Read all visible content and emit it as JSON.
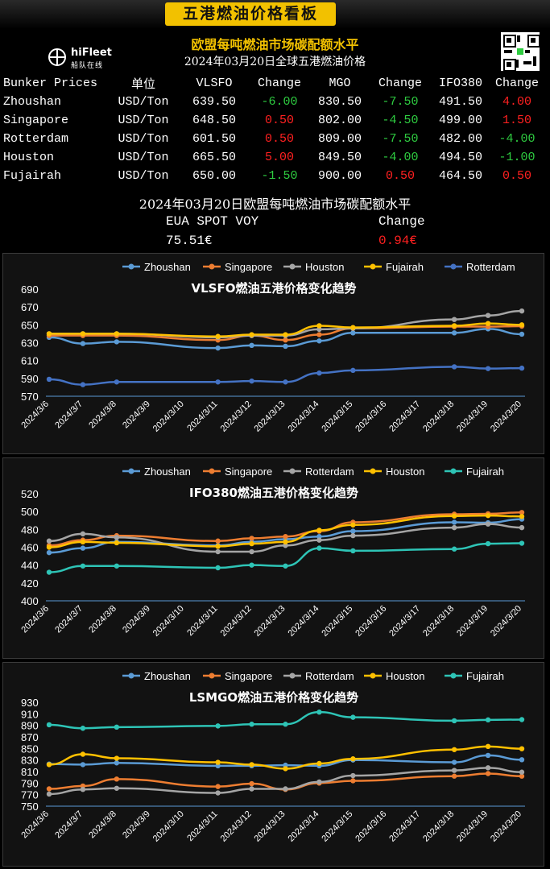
{
  "header": {
    "title": "五港燃油价格看板",
    "subtitle": "欧盟每吨燃油市场碳配额水平",
    "date_line": "2024年03月20日全球五港燃油价格",
    "logo_text": "hiFleet",
    "logo_sub": "船队在线"
  },
  "price_table": {
    "headers": [
      "Bunker Prices",
      "单位",
      "VLSFO",
      "Change",
      "MGO",
      "Change",
      "IFO380",
      "Change"
    ],
    "rows": [
      {
        "port": "Zhoushan",
        "unit": "USD/Ton",
        "vlsfo": "639.50",
        "vlsfo_chg": "-6.00",
        "mgo": "830.50",
        "mgo_chg": "-7.50",
        "ifo": "491.50",
        "ifo_chg": "4.00"
      },
      {
        "port": "Singapore",
        "unit": "USD/Ton",
        "vlsfo": "648.50",
        "vlsfo_chg": "0.50",
        "mgo": "802.00",
        "mgo_chg": "-4.50",
        "ifo": "499.00",
        "ifo_chg": "1.50"
      },
      {
        "port": "Rotterdam",
        "unit": "USD/Ton",
        "vlsfo": "601.50",
        "vlsfo_chg": "0.50",
        "mgo": "809.00",
        "mgo_chg": "-7.50",
        "ifo": "482.00",
        "ifo_chg": "-4.00"
      },
      {
        "port": "Houston",
        "unit": "USD/Ton",
        "vlsfo": "665.50",
        "vlsfo_chg": "5.00",
        "mgo": "849.50",
        "mgo_chg": "-4.00",
        "ifo": "494.50",
        "ifo_chg": "-1.00"
      },
      {
        "port": "Fujairah",
        "unit": "USD/Ton",
        "vlsfo": "650.00",
        "vlsfo_chg": "-1.50",
        "mgo": "900.00",
        "mgo_chg": "0.50",
        "ifo": "464.50",
        "ifo_chg": "0.50"
      }
    ]
  },
  "eua": {
    "title": "2024年03月20日欧盟每吨燃油市场碳配额水平",
    "label": "EUA SPOT VOY",
    "change_label": "Change",
    "value": "75.51€",
    "change": "0.94€"
  },
  "colors": {
    "Zhoushan": "#5b9bd5",
    "Singapore": "#ed7d31",
    "Houston_vlsfo": "#a5a5a5",
    "Fujairah_vlsfo": "#ffc000",
    "Rotterdam_vlsfo": "#4472c4",
    "Rotterdam": "#a5a5a5",
    "Houston": "#ffc000",
    "Fujairah": "#2ec4b6",
    "accent": "#f2c100",
    "up": "#ff2020",
    "down": "#2ecc40"
  },
  "chart_data": [
    {
      "type": "line",
      "title": "VLSFO燃油五港价格变化趋势",
      "x": [
        "2024/3/6",
        "2024/3/7",
        "2024/3/8",
        "2024/3/9",
        "2024/3/10",
        "2024/3/11",
        "2024/3/12",
        "2024/3/13",
        "2024/3/14",
        "2024/3/15",
        "2024/3/16",
        "2024/3/17",
        "2024/3/18",
        "2024/3/19",
        "2024/3/20"
      ],
      "ylim": [
        570,
        690
      ],
      "yticks": [
        570,
        590,
        610,
        630,
        650,
        670,
        690
      ],
      "legend_position": "top",
      "series": [
        {
          "name": "Zhoushan",
          "color": "#5b9bd5",
          "points": [
            [
              0,
              636
            ],
            [
              1,
              629
            ],
            [
              2,
              631
            ],
            [
              5,
              624
            ],
            [
              6,
              627
            ],
            [
              7,
              626
            ],
            [
              8,
              632
            ],
            [
              9,
              641
            ],
            [
              12,
              641
            ],
            [
              13,
              645.5
            ],
            [
              14,
              639.5
            ]
          ]
        },
        {
          "name": "Singapore",
          "color": "#ed7d31",
          "points": [
            [
              0,
              638
            ],
            [
              1,
              638
            ],
            [
              2,
              638
            ],
            [
              5,
              633
            ],
            [
              6,
              638
            ],
            [
              7,
              633
            ],
            [
              8,
              639
            ],
            [
              9,
              646
            ],
            [
              12,
              648
            ],
            [
              13,
              648
            ],
            [
              14,
              648.5
            ]
          ]
        },
        {
          "name": "Houston",
          "color": "#a5a5a5",
          "points": [
            [
              0,
              640
            ],
            [
              1,
              640
            ],
            [
              2,
              640
            ],
            [
              5,
              636
            ],
            [
              6,
              638
            ],
            [
              7,
              638
            ],
            [
              8,
              645
            ],
            [
              9,
              646
            ],
            [
              12,
              656
            ],
            [
              13,
              660.5
            ],
            [
              14,
              665.5
            ]
          ]
        },
        {
          "name": "Fujairah",
          "color": "#ffc000",
          "points": [
            [
              0,
              640
            ],
            [
              1,
              640
            ],
            [
              2,
              640
            ],
            [
              5,
              637
            ],
            [
              6,
              639
            ],
            [
              7,
              639
            ],
            [
              8,
              649
            ],
            [
              9,
              647
            ],
            [
              12,
              649
            ],
            [
              13,
              651.5
            ],
            [
              14,
              650
            ]
          ]
        },
        {
          "name": "Rotterdam",
          "color": "#4472c4",
          "points": [
            [
              0,
              589
            ],
            [
              1,
              583
            ],
            [
              2,
              586
            ],
            [
              5,
              586
            ],
            [
              6,
              587
            ],
            [
              7,
              586
            ],
            [
              8,
              596
            ],
            [
              9,
              599
            ],
            [
              12,
              603
            ],
            [
              13,
              601
            ],
            [
              14,
              601.5
            ]
          ]
        }
      ]
    },
    {
      "type": "line",
      "title": "IFO380燃油五港价格变化趋势",
      "x": [
        "2024/3/6",
        "2024/3/7",
        "2024/3/8",
        "2024/3/9",
        "2024/3/10",
        "2024/3/11",
        "2024/3/12",
        "2024/3/13",
        "2024/3/14",
        "2024/3/15",
        "2024/3/16",
        "2024/3/17",
        "2024/3/18",
        "2024/3/19",
        "2024/3/20"
      ],
      "ylim": [
        400,
        520
      ],
      "yticks": [
        400,
        420,
        440,
        460,
        480,
        500,
        520
      ],
      "legend_position": "top",
      "series": [
        {
          "name": "Zhoushan",
          "color": "#5b9bd5",
          "points": [
            [
              0,
              454
            ],
            [
              1,
              459
            ],
            [
              2,
              466
            ],
            [
              5,
              462
            ],
            [
              6,
              466
            ],
            [
              7,
              469
            ],
            [
              8,
              472
            ],
            [
              9,
              478
            ],
            [
              12,
              488
            ],
            [
              13,
              487.5
            ],
            [
              14,
              491.5
            ]
          ]
        },
        {
          "name": "Singapore",
          "color": "#ed7d31",
          "points": [
            [
              0,
              462
            ],
            [
              1,
              468
            ],
            [
              2,
              473
            ],
            [
              5,
              467
            ],
            [
              6,
              470
            ],
            [
              7,
              472
            ],
            [
              8,
              478
            ],
            [
              9,
              488
            ],
            [
              12,
              497
            ],
            [
              13,
              497.5
            ],
            [
              14,
              499
            ]
          ]
        },
        {
          "name": "Rotterdam",
          "color": "#a5a5a5",
          "points": [
            [
              0,
              467
            ],
            [
              1,
              475
            ],
            [
              2,
              471
            ],
            [
              5,
              455
            ],
            [
              6,
              455
            ],
            [
              7,
              462
            ],
            [
              8,
              468
            ],
            [
              9,
              473
            ],
            [
              12,
              482
            ],
            [
              13,
              486
            ],
            [
              14,
              482
            ]
          ]
        },
        {
          "name": "Houston",
          "color": "#ffc000",
          "points": [
            [
              0,
              460
            ],
            [
              1,
              466
            ],
            [
              2,
              465
            ],
            [
              5,
              461
            ],
            [
              6,
              464
            ],
            [
              7,
              466
            ],
            [
              8,
              479
            ],
            [
              9,
              485
            ],
            [
              12,
              495
            ],
            [
              13,
              495.5
            ],
            [
              14,
              494.5
            ]
          ]
        },
        {
          "name": "Fujairah",
          "color": "#2ec4b6",
          "points": [
            [
              0,
              432
            ],
            [
              1,
              439
            ],
            [
              2,
              439
            ],
            [
              5,
              437
            ],
            [
              6,
              440
            ],
            [
              7,
              439
            ],
            [
              8,
              459
            ],
            [
              9,
              456
            ],
            [
              12,
              458
            ],
            [
              13,
              464
            ],
            [
              14,
              464.5
            ]
          ]
        }
      ]
    },
    {
      "type": "line",
      "title": "LSMGO燃油五港价格变化趋势",
      "x": [
        "2024/3/6",
        "2024/3/7",
        "2024/3/8",
        "2024/3/9",
        "2024/3/10",
        "2024/3/11",
        "2024/3/12",
        "2024/3/13",
        "2024/3/14",
        "2024/3/15",
        "2024/3/16",
        "2024/3/17",
        "2024/3/18",
        "2024/3/19",
        "2024/3/20"
      ],
      "ylim": [
        750,
        930
      ],
      "yticks": [
        750,
        770,
        790,
        810,
        830,
        850,
        870,
        890,
        910,
        930
      ],
      "legend_position": "top",
      "series": [
        {
          "name": "Zhoushan",
          "color": "#5b9bd5",
          "points": [
            [
              0,
              823
            ],
            [
              1,
              822
            ],
            [
              2,
              825
            ],
            [
              5,
              820
            ],
            [
              6,
              820
            ],
            [
              7,
              821
            ],
            [
              8,
              820
            ],
            [
              9,
              830
            ],
            [
              12,
              826
            ],
            [
              13,
              838
            ],
            [
              14,
              830.5
            ]
          ]
        },
        {
          "name": "Singapore",
          "color": "#ed7d31",
          "points": [
            [
              0,
              780
            ],
            [
              1,
              785
            ],
            [
              2,
              797
            ],
            [
              5,
              784
            ],
            [
              6,
              789
            ],
            [
              7,
              779
            ],
            [
              8,
              790
            ],
            [
              9,
              794
            ],
            [
              12,
              802
            ],
            [
              13,
              806.5
            ],
            [
              14,
              802
            ]
          ]
        },
        {
          "name": "Rotterdam",
          "color": "#a5a5a5",
          "points": [
            [
              0,
              771
            ],
            [
              1,
              779
            ],
            [
              2,
              781
            ],
            [
              5,
              773
            ],
            [
              6,
              780
            ],
            [
              7,
              780
            ],
            [
              8,
              792
            ],
            [
              9,
              803
            ],
            [
              12,
              812
            ],
            [
              13,
              816.5
            ],
            [
              14,
              809
            ]
          ]
        },
        {
          "name": "Houston",
          "color": "#ffc000",
          "points": [
            [
              0,
              822
            ],
            [
              1,
              840
            ],
            [
              2,
              833
            ],
            [
              5,
              826
            ],
            [
              6,
              822
            ],
            [
              7,
              815
            ],
            [
              8,
              824
            ],
            [
              9,
              832
            ],
            [
              12,
              848
            ],
            [
              13,
              853.5
            ],
            [
              14,
              849.5
            ]
          ]
        },
        {
          "name": "Fujairah",
          "color": "#2ec4b6",
          "points": [
            [
              0,
              891
            ],
            [
              1,
              885
            ],
            [
              2,
              887
            ],
            [
              5,
              889
            ],
            [
              6,
              892
            ],
            [
              7,
              892
            ],
            [
              8,
              913
            ],
            [
              9,
              904
            ],
            [
              12,
              898
            ],
            [
              13,
              899.5
            ],
            [
              14,
              900
            ]
          ]
        }
      ]
    }
  ]
}
